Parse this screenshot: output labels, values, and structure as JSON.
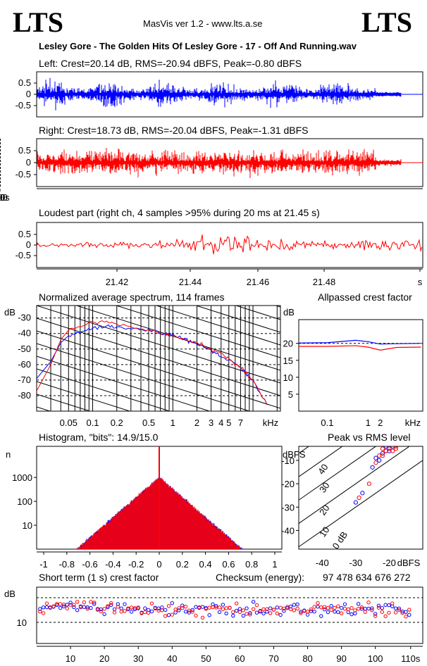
{
  "header": {
    "logo_left": "LTS",
    "logo_right": "LTS",
    "app_title": "MasVis ver 1.2 - www.lts.a.se",
    "file_title": "Lesley Gore - The Golden Hits Of Lesley Gore - 17 - Off And Running.wav"
  },
  "panels": {
    "left_title": "Left: Crest=20.14 dB, RMS=-20.94 dBFS, Peak=-0.80 dBFS",
    "right_title": "Right: Crest=18.73 dB, RMS=-20.04 dBFS, Peak=-1.31 dBFS",
    "loudest_title": "Loudest part (right ch, 4 samples >95% during 20 ms at 21.45 s)",
    "spectrum_title": "Normalized average spectrum, 114 frames",
    "allpass_title": "Allpassed crest factor",
    "histogram_title": "Histogram, \"bits\": 14.9/15.0",
    "peakrms_title": "Peak vs RMS level",
    "shortterm_title": "Short term (1 s) crest factor",
    "checksum_label": "Checksum (energy):",
    "checksum_value": "97 478 634 676 272"
  },
  "colors": {
    "left": "#0000ff",
    "right": "#ff0000",
    "axis": "#000000"
  },
  "chart_data": [
    {
      "type": "line",
      "name": "waveform-left",
      "x_unit": "s",
      "ylim": [
        -1,
        1
      ],
      "y_ticks": [
        "0.5",
        "0",
        "-0.5"
      ],
      "duration_s": 110,
      "marker_s": null
    },
    {
      "type": "line",
      "name": "waveform-right",
      "x_unit": "s",
      "ylim": [
        -1,
        1
      ],
      "y_ticks": [
        "0.5",
        "0",
        "-0.5"
      ],
      "x_ticks": [
        "10",
        "20",
        "30",
        "40",
        "50",
        "60",
        "70",
        "80",
        "90",
        "100",
        "110s"
      ],
      "marker_s": 21.45
    },
    {
      "type": "line",
      "name": "loudest-part",
      "xlim": [
        21.4,
        21.5
      ],
      "ylim": [
        -1,
        1
      ],
      "y_ticks": [
        "0.5",
        "0",
        "-0.5"
      ],
      "x_ticks": [
        "21.42",
        "21.44",
        "21.46",
        "21.48",
        "s"
      ]
    },
    {
      "type": "line",
      "name": "spectrum",
      "ylabel": "dB",
      "xlabel": "kHz",
      "y_ticks": [
        "-30",
        "-40",
        "-50",
        "-60",
        "-70",
        "-80"
      ],
      "x_ticks": [
        "0.05",
        "0.1",
        "0.2",
        "0.5",
        "1",
        "2",
        "3",
        "4",
        "5",
        "7",
        "kHz"
      ],
      "series": [
        {
          "points": [
            [
              0.02,
              -69
            ],
            [
              0.03,
              -58
            ],
            [
              0.04,
              -46
            ],
            [
              0.05,
              -41
            ],
            [
              0.07,
              -39
            ],
            [
              0.1,
              -37
            ],
            [
              0.15,
              -35
            ],
            [
              0.2,
              -36
            ],
            [
              0.3,
              -37
            ],
            [
              0.5,
              -38
            ],
            [
              0.8,
              -40
            ],
            [
              1,
              -41
            ],
            [
              1.5,
              -44
            ],
            [
              2,
              -47
            ],
            [
              3,
              -51
            ],
            [
              4,
              -55
            ],
            [
              5,
              -57
            ],
            [
              7,
              -62
            ],
            [
              10,
              -70
            ],
            [
              15,
              -86
            ]
          ]
        },
        {
          "points": [
            [
              0.02,
              -77
            ],
            [
              0.03,
              -60
            ],
            [
              0.04,
              -44
            ],
            [
              0.05,
              -38
            ],
            [
              0.07,
              -36
            ],
            [
              0.1,
              -33
            ],
            [
              0.15,
              -32
            ],
            [
              0.2,
              -34
            ],
            [
              0.3,
              -36
            ],
            [
              0.5,
              -38
            ],
            [
              0.8,
              -40
            ],
            [
              1,
              -42
            ],
            [
              1.5,
              -44
            ],
            [
              2,
              -46
            ],
            [
              3,
              -50
            ],
            [
              4,
              -53
            ],
            [
              5,
              -56
            ],
            [
              7,
              -62
            ],
            [
              10,
              -70
            ],
            [
              15,
              -86
            ]
          ]
        }
      ]
    },
    {
      "type": "line",
      "name": "allpassed-crest",
      "ylabel": "dB",
      "xlabel": "kHz",
      "y_ticks": [
        "20",
        "15",
        "10",
        "5"
      ],
      "x_ticks": [
        "0.1",
        "1",
        "2",
        "kHz"
      ],
      "ylim": [
        0,
        27
      ],
      "series": [
        {
          "points": [
            [
              0.02,
              20.1
            ],
            [
              0.1,
              20.2
            ],
            [
              0.5,
              20.9
            ],
            [
              1,
              20.5
            ],
            [
              2,
              19.8
            ],
            [
              5,
              19.9
            ],
            [
              20,
              20.0
            ]
          ]
        },
        {
          "points": [
            [
              0.02,
              19.1
            ],
            [
              0.1,
              19.1
            ],
            [
              0.5,
              19.3
            ],
            [
              1,
              18.9
            ],
            [
              2,
              18.0
            ],
            [
              5,
              18.8
            ],
            [
              20,
              18.9
            ]
          ]
        }
      ]
    },
    {
      "type": "line",
      "name": "histogram",
      "ylabel": "n",
      "x_ticks": [
        "-1",
        "-0.8",
        "-0.6",
        "-0.4",
        "-0.2",
        "0",
        "0.2",
        "0.4",
        "0.6",
        "0.8",
        "1"
      ],
      "y_ticks": [
        "1000",
        "100",
        "10"
      ],
      "peak_count": 1000
    },
    {
      "type": "scatter",
      "name": "peak-vs-rms",
      "ylabel": "dBFS",
      "xlabel": "dBFS",
      "x_ticks": [
        "-40",
        "-30",
        "-20",
        "dBFS"
      ],
      "y_ticks": [
        "-10",
        "-20",
        "-30",
        "-40"
      ],
      "diagonal_labels": [
        "40",
        "30",
        "20",
        "10",
        "0 dB"
      ],
      "series": [
        {
          "points": [
            [
              -30,
              -28
            ],
            [
              -28,
              -24
            ],
            [
              -25,
              -13
            ],
            [
              -23,
              -10
            ],
            [
              -21,
              -6
            ],
            [
              -20,
              -5
            ],
            [
              -19,
              -4
            ],
            [
              -22,
              -7
            ],
            [
              -24,
              -9
            ],
            [
              -18,
              -3
            ],
            [
              -20,
              -6
            ],
            [
              -21,
              -4
            ]
          ]
        },
        {
          "points": [
            [
              -29,
              -26
            ],
            [
              -26,
              -20
            ],
            [
              -24,
              -11
            ],
            [
              -22,
              -8
            ],
            [
              -20,
              -5
            ],
            [
              -19,
              -3
            ],
            [
              -18,
              -4
            ],
            [
              -21,
              -6
            ],
            [
              -23,
              -8
            ],
            [
              -17,
              -2
            ],
            [
              -20,
              -3
            ],
            [
              -19,
              -6
            ],
            [
              -22,
              -5
            ],
            [
              -18,
              -5
            ]
          ]
        }
      ]
    },
    {
      "type": "scatter",
      "name": "short-term-crest",
      "ylabel": "dB",
      "y_ticks": [
        "10"
      ],
      "x_ticks": [
        "10",
        "20",
        "30",
        "40",
        "50",
        "60",
        "70",
        "80",
        "90",
        "100",
        "110s"
      ]
    }
  ]
}
